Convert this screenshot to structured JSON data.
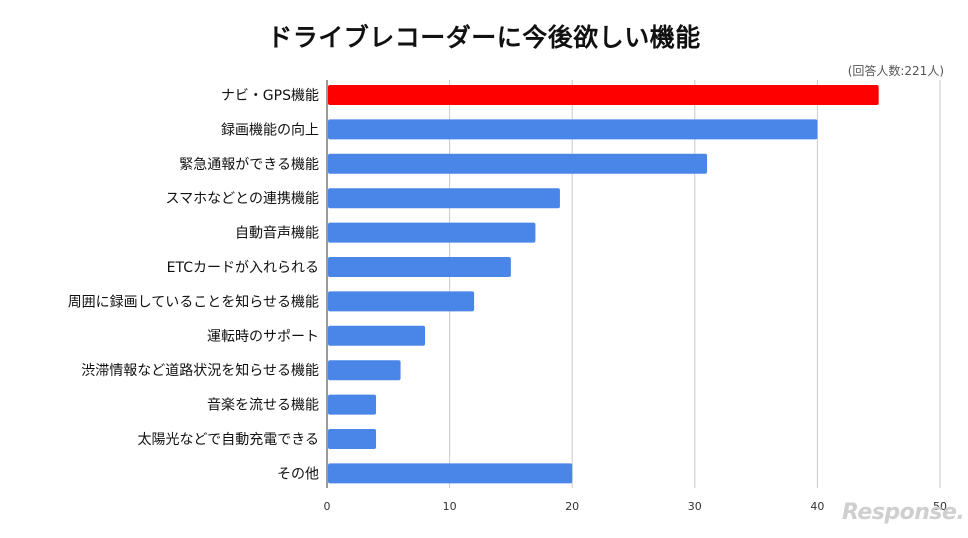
{
  "chart_data": {
    "type": "bar",
    "orientation": "horizontal",
    "title": "ドライブレコーダーに今後欲しい機能",
    "note": "(回答人数:221人)",
    "categories": [
      "ナビ・GPS機能",
      "録画機能の向上",
      "緊急通報ができる機能",
      "スマホなどとの連携機能",
      "自動音声機能",
      "ETCカードが入れられる",
      "周囲に録画していることを知らせる機能",
      "運転時のサポート",
      "渋滞情報など道路状況を知らせる機能",
      "音楽を流せる機能",
      "太陽光などで自動充電できる",
      "その他"
    ],
    "values": [
      45,
      40,
      31,
      19,
      17,
      15,
      12,
      8,
      6,
      4,
      4,
      20
    ],
    "highlight_index": 0,
    "xlim": [
      0,
      50
    ],
    "xticks": [
      0,
      10,
      20,
      30,
      40,
      50
    ],
    "grid": true,
    "colors": {
      "bar": "#4a86e8",
      "highlight": "#ff0000",
      "grid": "#c8c8c8"
    }
  },
  "watermark": "Response."
}
